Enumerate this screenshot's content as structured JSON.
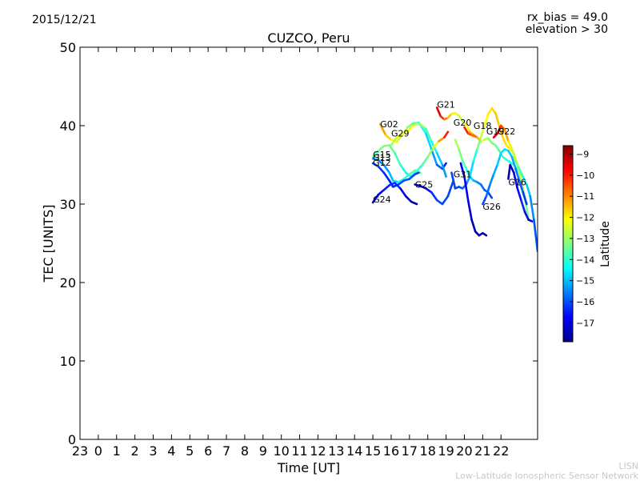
{
  "header": {
    "date": "2015/12/21",
    "rx_bias": "rx_bias = 49.0",
    "elevation": "elevation > 30"
  },
  "footer": {
    "org_short": "LISN",
    "org_full": "Low-Latitude Ionospheric Sensor Network"
  },
  "chart_data": {
    "type": "scatter",
    "title": "CUZCO, Peru",
    "xlabel": "Time [UT]",
    "ylabel": "TEC [UNITS]",
    "xlim": [
      -1,
      24
    ],
    "ylim": [
      0,
      50
    ],
    "x_ticks": [
      -1,
      0,
      1,
      2,
      3,
      4,
      5,
      6,
      7,
      8,
      9,
      10,
      11,
      12,
      13,
      14,
      15,
      16,
      17,
      18,
      19,
      20,
      21,
      22
    ],
    "x_tick_labels": [
      "23",
      "0",
      "1",
      "2",
      "3",
      "4",
      "5",
      "6",
      "7",
      "8",
      "9",
      "10",
      "11",
      "12",
      "13",
      "14",
      "15",
      "16",
      "17",
      "18",
      "19",
      "20",
      "21",
      "22"
    ],
    "y_ticks": [
      0,
      10,
      20,
      30,
      40,
      50
    ],
    "colorbar": {
      "label": "Latitude",
      "range": [
        -17.9,
        -8.6
      ],
      "ticks": [
        -9,
        -10,
        -11,
        -12,
        -13,
        -14,
        -15,
        -16,
        -17
      ],
      "colormap": "jet"
    },
    "grid": false,
    "series": [
      {
        "name": "G02",
        "points": [
          [
            15.4,
            40.2,
            -11.0
          ],
          [
            15.7,
            38.8,
            -11.4
          ],
          [
            16.0,
            38.2,
            -11.9
          ],
          [
            16.3,
            37.9,
            -12.2
          ],
          [
            16.6,
            38.8,
            -12.6
          ],
          [
            16.9,
            39.8,
            -13.0
          ],
          [
            17.2,
            40.3,
            -13.5
          ],
          [
            17.5,
            40.4,
            -14.0
          ],
          [
            17.9,
            39.0,
            -14.5
          ],
          [
            18.2,
            37.0,
            -15.0
          ],
          [
            18.5,
            35.0,
            -15.6
          ],
          [
            18.8,
            34.5,
            -16.2
          ],
          [
            19.0,
            35.2,
            -16.6
          ]
        ]
      },
      {
        "name": "G29",
        "points": [
          [
            16.0,
            37.5,
            -13.0
          ],
          [
            16.3,
            38.5,
            -12.5
          ],
          [
            16.6,
            39.0,
            -12.2
          ],
          [
            16.9,
            39.3,
            -11.8
          ],
          [
            17.2,
            40.0,
            -12.2
          ],
          [
            17.5,
            40.3,
            -12.8
          ],
          [
            17.9,
            39.6,
            -13.4
          ],
          [
            18.2,
            38.0,
            -14.0
          ],
          [
            18.5,
            36.5,
            -14.6
          ],
          [
            18.8,
            35.0,
            -15.1
          ],
          [
            19.0,
            33.5,
            -15.5
          ]
        ]
      },
      {
        "name": "G15",
        "points": [
          [
            15.0,
            36.0,
            -14.0
          ],
          [
            15.3,
            36.8,
            -13.5
          ],
          [
            15.6,
            37.4,
            -13.1
          ],
          [
            15.9,
            37.5,
            -13.3
          ],
          [
            16.2,
            36.5,
            -13.6
          ],
          [
            16.5,
            35.0,
            -14.0
          ],
          [
            16.8,
            34.0,
            -14.3
          ],
          [
            17.1,
            33.5,
            -14.6
          ],
          [
            17.4,
            34.2,
            -14.2
          ],
          [
            17.7,
            35.0,
            -13.8
          ],
          [
            18.0,
            36.0,
            -13.4
          ],
          [
            18.3,
            37.2,
            -12.8
          ],
          [
            18.6,
            38.0,
            -11.8
          ],
          [
            18.9,
            38.5,
            -10.5
          ],
          [
            19.1,
            39.2,
            -9.5
          ]
        ]
      },
      {
        "name": "G13",
        "points": [
          [
            15.0,
            35.8,
            -15.0
          ],
          [
            15.3,
            35.6,
            -15.3
          ],
          [
            15.6,
            35.0,
            -15.5
          ],
          [
            15.9,
            34.0,
            -15.2
          ],
          [
            16.1,
            33.0,
            -14.8
          ],
          [
            16.4,
            32.8,
            -14.6
          ],
          [
            16.7,
            33.2,
            -14.2
          ],
          [
            17.0,
            33.8,
            -13.8
          ],
          [
            17.3,
            34.3,
            -13.4
          ],
          [
            17.6,
            34.0,
            -14.0
          ]
        ]
      },
      {
        "name": "G12",
        "points": [
          [
            15.0,
            35.2,
            -16.0
          ],
          [
            15.3,
            34.8,
            -16.2
          ],
          [
            15.6,
            34.0,
            -16.3
          ],
          [
            15.9,
            33.0,
            -16.5
          ],
          [
            16.1,
            32.2,
            -16.6
          ],
          [
            16.4,
            32.5,
            -16.3
          ],
          [
            16.7,
            33.0,
            -16.0
          ],
          [
            17.0,
            33.2,
            -16.0
          ],
          [
            17.3,
            33.8,
            -16.1
          ],
          [
            17.5,
            34.0,
            -16.2
          ]
        ]
      },
      {
        "name": "G24",
        "points": [
          [
            15.0,
            30.2,
            -17.5
          ],
          [
            15.3,
            31.2,
            -17.0
          ],
          [
            15.6,
            31.8,
            -16.6
          ],
          [
            15.9,
            32.4,
            -16.3
          ],
          [
            16.2,
            32.7,
            -16.2
          ],
          [
            16.5,
            32.0,
            -16.6
          ],
          [
            16.8,
            31.0,
            -17.0
          ],
          [
            17.1,
            30.3,
            -17.3
          ],
          [
            17.4,
            30.0,
            -17.5
          ]
        ]
      },
      {
        "name": "G25",
        "points": [
          [
            17.3,
            32.5,
            -17.4
          ],
          [
            17.6,
            32.3,
            -17.2
          ],
          [
            17.9,
            32.0,
            -16.8
          ],
          [
            18.2,
            31.5,
            -16.4
          ],
          [
            18.5,
            30.5,
            -16.2
          ],
          [
            18.8,
            30.0,
            -16.0
          ],
          [
            19.1,
            31.0,
            -16.2
          ],
          [
            19.4,
            33.0,
            -16.1
          ]
        ]
      },
      {
        "name": "G21",
        "points": [
          [
            18.5,
            42.3,
            -9.2
          ],
          [
            18.7,
            41.2,
            -9.8
          ],
          [
            18.9,
            40.8,
            -10.4
          ],
          [
            19.1,
            41.0,
            -11.2
          ],
          [
            19.3,
            41.5,
            -11.8
          ],
          [
            19.5,
            41.6,
            -12.2
          ],
          [
            19.7,
            41.3,
            -12.5
          ],
          [
            19.9,
            40.6,
            -12.8
          ],
          [
            20.1,
            40.2,
            -12.6
          ],
          [
            20.3,
            39.2,
            -11.8
          ],
          [
            20.5,
            38.8,
            -11.0
          ],
          [
            20.7,
            38.5,
            -10.5
          ]
        ]
      },
      {
        "name": "G20",
        "points": [
          [
            19.5,
            38.2,
            -12.6
          ],
          [
            19.7,
            37.0,
            -13.0
          ],
          [
            19.9,
            35.5,
            -13.5
          ],
          [
            20.1,
            34.5,
            -14.0
          ],
          [
            20.3,
            33.5,
            -14.5
          ],
          [
            20.5,
            33.0,
            -15.0
          ],
          [
            20.7,
            32.8,
            -15.4
          ],
          [
            20.9,
            32.5,
            -15.6
          ],
          [
            21.1,
            31.8,
            -15.8
          ],
          [
            21.3,
            31.5,
            -16.0
          ],
          [
            21.5,
            30.8,
            -16.3
          ]
        ]
      },
      {
        "name": "G18",
        "points": [
          [
            20.0,
            39.8,
            -9.8
          ],
          [
            20.2,
            39.0,
            -10.2
          ],
          [
            20.4,
            38.8,
            -10.5
          ],
          [
            20.7,
            38.5,
            -11.0
          ],
          [
            20.9,
            38.0,
            -11.8
          ],
          [
            21.1,
            38.2,
            -12.5
          ],
          [
            21.3,
            38.4,
            -13.0
          ],
          [
            21.5,
            37.8,
            -13.2
          ],
          [
            21.7,
            37.5,
            -13.4
          ],
          [
            21.9,
            36.8,
            -13.6
          ],
          [
            22.1,
            36.0,
            -13.8
          ],
          [
            22.4,
            35.5,
            -14.0
          ],
          [
            22.7,
            35.0,
            -14.2
          ],
          [
            23.0,
            34.0,
            -14.3
          ]
        ]
      },
      {
        "name": "G31",
        "points": [
          [
            19.3,
            34.0,
            -16.0
          ],
          [
            19.5,
            32.0,
            -16.2
          ],
          [
            19.7,
            32.2,
            -16.1
          ],
          [
            19.9,
            32.0,
            -16.0
          ],
          [
            20.1,
            32.5,
            -15.6
          ],
          [
            20.3,
            33.5,
            -15.0
          ],
          [
            20.5,
            35.5,
            -14.5
          ],
          [
            20.7,
            37.0,
            -13.8
          ],
          [
            20.9,
            38.5,
            -12.8
          ],
          [
            21.1,
            40.0,
            -12.3
          ],
          [
            21.3,
            41.5,
            -12.0
          ],
          [
            21.5,
            42.2,
            -11.8
          ],
          [
            21.7,
            41.6,
            -11.6
          ],
          [
            21.9,
            40.0,
            -11.5
          ],
          [
            22.1,
            38.5,
            -11.7
          ],
          [
            22.3,
            37.5,
            -11.9
          ],
          [
            22.5,
            37.0,
            -12.0
          ],
          [
            22.7,
            36.5,
            -12.2
          ],
          [
            22.9,
            35.0,
            -12.5
          ],
          [
            23.1,
            33.0,
            -12.8
          ],
          [
            23.3,
            31.0,
            -13.1
          ],
          [
            23.5,
            28.0,
            -13.4
          ]
        ]
      },
      {
        "name": "G19",
        "points": [
          [
            19.8,
            35.2,
            -16.8
          ],
          [
            20.0,
            33.5,
            -16.8
          ],
          [
            20.2,
            30.5,
            -17.0
          ],
          [
            20.4,
            28.0,
            -17.2
          ],
          [
            20.6,
            26.5,
            -17.5
          ],
          [
            20.8,
            26.0,
            -17.6
          ],
          [
            21.0,
            26.3,
            -17.6
          ],
          [
            21.2,
            26.0,
            -17.6
          ]
        ]
      },
      {
        "name": "G22",
        "points": [
          [
            21.6,
            38.5,
            -9.3
          ],
          [
            21.8,
            39.0,
            -9.6
          ],
          [
            22.0,
            40.0,
            -10.0
          ],
          [
            22.2,
            39.5,
            -10.8
          ],
          [
            22.4,
            38.0,
            -11.6
          ],
          [
            22.6,
            37.0,
            -12.3
          ],
          [
            22.8,
            35.5,
            -13.0
          ],
          [
            23.0,
            34.5,
            -13.6
          ],
          [
            23.2,
            33.5,
            -14.1
          ],
          [
            23.4,
            32.5,
            -14.6
          ],
          [
            23.6,
            31.0,
            -15.2
          ],
          [
            23.8,
            28.0,
            -15.7
          ],
          [
            24.0,
            24.0,
            -16.3
          ]
        ]
      },
      {
        "name": "G26",
        "points": [
          [
            21.0,
            30.0,
            -16.3
          ],
          [
            21.2,
            31.0,
            -15.9
          ],
          [
            21.4,
            32.5,
            -15.6
          ],
          [
            21.6,
            33.8,
            -15.3
          ],
          [
            21.8,
            35.0,
            -15.0
          ],
          [
            22.0,
            36.5,
            -14.8
          ],
          [
            22.2,
            37.0,
            -14.5
          ],
          [
            22.4,
            36.8,
            -14.7
          ],
          [
            22.6,
            36.0,
            -15.0
          ],
          [
            22.8,
            34.5,
            -15.4
          ],
          [
            23.0,
            33.0,
            -15.8
          ],
          [
            23.2,
            31.5,
            -16.1
          ],
          [
            23.4,
            30.0,
            -16.4
          ]
        ]
      },
      {
        "name": "G16",
        "points": [
          [
            22.4,
            33.2,
            -17.5
          ],
          [
            22.5,
            35.0,
            -17.3
          ],
          [
            22.7,
            34.0,
            -17.2
          ],
          [
            22.9,
            32.0,
            -16.8
          ],
          [
            23.1,
            30.5,
            -16.5
          ],
          [
            23.3,
            29.0,
            -16.3
          ],
          [
            23.5,
            28.0,
            -17.0
          ],
          [
            23.7,
            27.8,
            -17.4
          ]
        ]
      }
    ],
    "series_labels": [
      {
        "name": "G02",
        "x": 15.4,
        "y": 39.8
      },
      {
        "name": "G29",
        "x": 16.0,
        "y": 38.6
      },
      {
        "name": "G15",
        "x": 15.0,
        "y": 35.9
      },
      {
        "name": "G13",
        "x": 15.0,
        "y": 35.5
      },
      {
        "name": "G12",
        "x": 15.0,
        "y": 34.9
      },
      {
        "name": "G24",
        "x": 15.0,
        "y": 30.2
      },
      {
        "name": "G25",
        "x": 17.3,
        "y": 32.1
      },
      {
        "name": "G21",
        "x": 18.5,
        "y": 42.3
      },
      {
        "name": "G20",
        "x": 19.4,
        "y": 40.0
      },
      {
        "name": "G18",
        "x": 20.5,
        "y": 39.6
      },
      {
        "name": "G31",
        "x": 19.4,
        "y": 33.4
      },
      {
        "name": "G19",
        "x": 21.2,
        "y": 38.9
      },
      {
        "name": "G22",
        "x": 21.8,
        "y": 38.9
      },
      {
        "name": "G26",
        "x": 21.0,
        "y": 29.3
      },
      {
        "name": "G16",
        "x": 22.4,
        "y": 32.4
      }
    ]
  }
}
